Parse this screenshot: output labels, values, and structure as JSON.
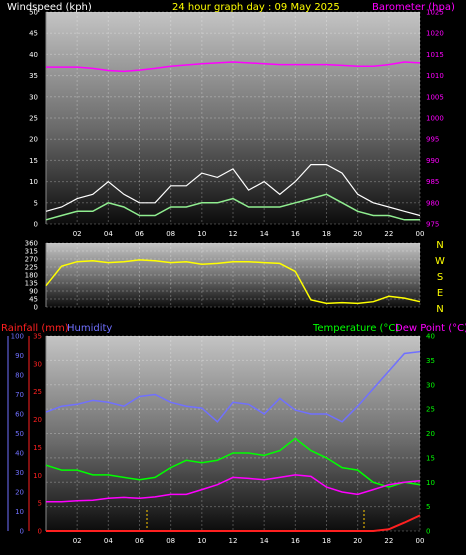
{
  "colors": {
    "wind": "#ffffff",
    "wind_avg": "#90ee90",
    "barometer": "#ff00ff",
    "direction": "#ffff00",
    "rainfall": "#ff2020",
    "humidity": "#7070ff",
    "temperature": "#00ff00",
    "dewpoint": "#ff00ff",
    "header": "#ffff00",
    "wind_label": "#ffffff",
    "direction_label": "#ffff00",
    "rain_marker": "#ffcc00"
  },
  "header": {
    "wind_label": "Windspeed (kph)",
    "title": "24 hour graph day : 09 May 2025",
    "baro_label": "Barometer (hpa)"
  },
  "mid_labels": {
    "rain": "Rainfall (mm)",
    "humidity": "Humidity",
    "temperature": "Temperature (°C)",
    "dewpoint": "Dew Point (°C)"
  },
  "x_ticks": [
    "02",
    "04",
    "06",
    "08",
    "10",
    "12",
    "14",
    "16",
    "18",
    "20",
    "22",
    "00"
  ],
  "chart_data": [
    {
      "type": "line",
      "panel": "wind_barometer",
      "title": "24 hour graph day : 09 May 2025",
      "y_left": {
        "label": "Windspeed (kph)",
        "min": 0,
        "max": 50,
        "ticks": [
          0,
          5,
          10,
          15,
          20,
          25,
          30,
          35,
          40,
          45,
          50
        ]
      },
      "y_right": {
        "label": "Barometer (hpa)",
        "min": 975,
        "max": 1025,
        "ticks": [
          975,
          980,
          985,
          990,
          995,
          1000,
          1005,
          1010,
          1015,
          1020,
          1025
        ]
      },
      "x_hours": [
        0,
        1,
        2,
        3,
        4,
        5,
        6,
        7,
        8,
        9,
        10,
        11,
        12,
        13,
        14,
        15,
        16,
        17,
        18,
        19,
        20,
        21,
        22,
        23,
        24
      ],
      "series": [
        {
          "axis": "left",
          "values": [
            3,
            4,
            6,
            7,
            10,
            7,
            5,
            5,
            9,
            9,
            12,
            11,
            13,
            8,
            10,
            7,
            10,
            14,
            14,
            12,
            7,
            5,
            4,
            3,
            2
          ]
        },
        {
          "axis": "left",
          "values": [
            1,
            2,
            3,
            3,
            5,
            4,
            2,
            2,
            4,
            4,
            5,
            5,
            6,
            4,
            4,
            4,
            5,
            6,
            7,
            5,
            3,
            2,
            2,
            1,
            1
          ]
        },
        {
          "axis": "right",
          "values": [
            1012,
            1012,
            1012,
            1011.7,
            1011.2,
            1011,
            1011.3,
            1011.7,
            1012.2,
            1012.5,
            1012.8,
            1013,
            1013.2,
            1013,
            1012.8,
            1012.6,
            1012.6,
            1012.6,
            1012.6,
            1012.4,
            1012.2,
            1012.2,
            1012.6,
            1013.2,
            1013
          ]
        }
      ]
    },
    {
      "type": "line",
      "panel": "wind_direction",
      "y_left": {
        "min": 0,
        "max": 360,
        "ticks": [
          0,
          45,
          90,
          135,
          180,
          225,
          270,
          315,
          360
        ]
      },
      "y_right_labels": [
        "N",
        "W",
        "S",
        "E",
        "N"
      ],
      "x_hours": [
        0,
        1,
        2,
        3,
        4,
        5,
        6,
        7,
        8,
        9,
        10,
        11,
        12,
        13,
        14,
        15,
        16,
        17,
        18,
        19,
        20,
        21,
        22,
        23,
        24
      ],
      "series": [
        {
          "values": [
            120,
            230,
            255,
            260,
            250,
            255,
            265,
            260,
            250,
            255,
            240,
            245,
            255,
            255,
            250,
            245,
            200,
            40,
            20,
            25,
            20,
            30,
            60,
            50,
            30
          ]
        }
      ]
    },
    {
      "type": "line",
      "panel": "temperature_humidity_rain",
      "y_left": {
        "label": "Rainfall (mm)",
        "min": 0,
        "max": 35,
        "ticks": [
          0,
          5,
          10,
          15,
          20,
          25,
          30,
          35
        ]
      },
      "y_left2": {
        "label": "Humidity",
        "min": 0,
        "max": 100,
        "ticks": [
          0,
          10,
          20,
          30,
          40,
          50,
          60,
          70,
          80,
          90,
          100
        ]
      },
      "y_right": {
        "label": "Temperature (°C)",
        "min": 0,
        "max": 40,
        "ticks": [
          0,
          5,
          10,
          15,
          20,
          25,
          30,
          35,
          40
        ]
      },
      "x_hours": [
        0,
        1,
        2,
        3,
        4,
        5,
        6,
        7,
        8,
        9,
        10,
        11,
        12,
        13,
        14,
        15,
        16,
        17,
        18,
        19,
        20,
        21,
        22,
        23,
        24
      ],
      "series": [
        {
          "axis": "left2",
          "values": [
            61,
            64,
            65,
            67,
            66,
            64,
            69,
            70,
            66,
            64,
            63,
            56,
            66,
            65,
            60,
            68,
            62,
            60,
            60,
            56,
            64,
            73,
            82,
            91,
            92
          ]
        },
        {
          "axis": "right",
          "values": [
            13.5,
            12.5,
            12.5,
            11.5,
            11.5,
            11,
            10.5,
            11,
            13,
            14.5,
            14,
            14.5,
            16,
            16,
            15.5,
            16.5,
            19,
            16.5,
            15,
            13,
            12.5,
            10,
            9,
            10,
            9.5
          ]
        },
        {
          "axis": "right",
          "values": [
            6,
            6,
            6.2,
            6.3,
            6.7,
            6.9,
            6.7,
            7,
            7.5,
            7.5,
            8.5,
            9.5,
            11,
            10.8,
            10.5,
            11,
            11.5,
            11.2,
            9,
            8,
            7.5,
            8.5,
            9.5,
            10,
            10.3
          ]
        },
        {
          "axis": "left",
          "values": [
            0,
            0,
            0,
            0,
            0,
            0,
            0,
            0,
            0,
            0,
            0,
            0,
            0,
            0,
            0,
            0,
            0,
            0,
            0,
            0,
            0,
            0,
            0.3,
            1.5,
            2.8
          ]
        }
      ]
    }
  ]
}
